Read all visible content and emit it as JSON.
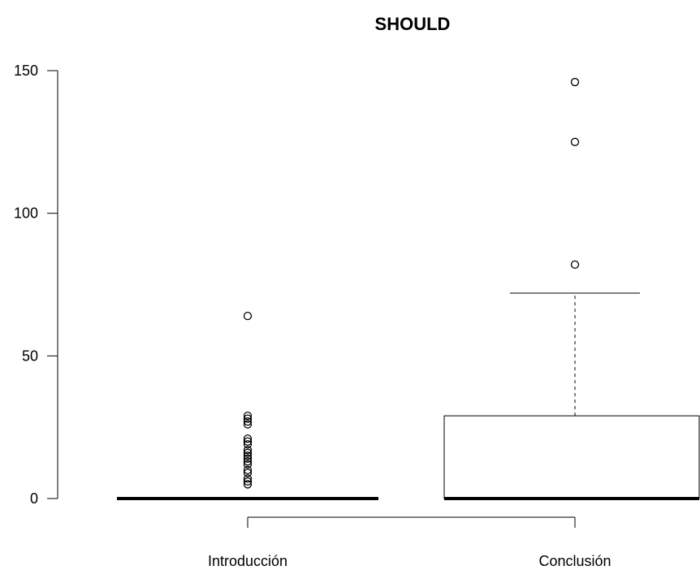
{
  "chart_data": {
    "type": "box",
    "title": "SHOULD",
    "xlabel": "",
    "ylabel": "",
    "ylim": [
      0,
      150
    ],
    "yticks": [
      0,
      50,
      100,
      150
    ],
    "categories": [
      "Introducción",
      "Conclusión"
    ],
    "boxes": [
      {
        "category": "Introducción",
        "whisker_low": 0,
        "q1": 0,
        "median": 0,
        "q3": 0,
        "whisker_high": 0,
        "outliers": [
          5,
          6,
          7,
          9,
          10,
          12,
          13,
          14,
          15,
          16,
          17,
          19,
          20,
          21,
          26,
          27,
          28,
          29,
          64
        ]
      },
      {
        "category": "Conclusión",
        "whisker_low": 0,
        "q1": 0,
        "median": 0,
        "q3": 29,
        "whisker_high": 72,
        "outliers": [
          82,
          125,
          146
        ]
      }
    ],
    "grid": false,
    "legend": "none"
  }
}
